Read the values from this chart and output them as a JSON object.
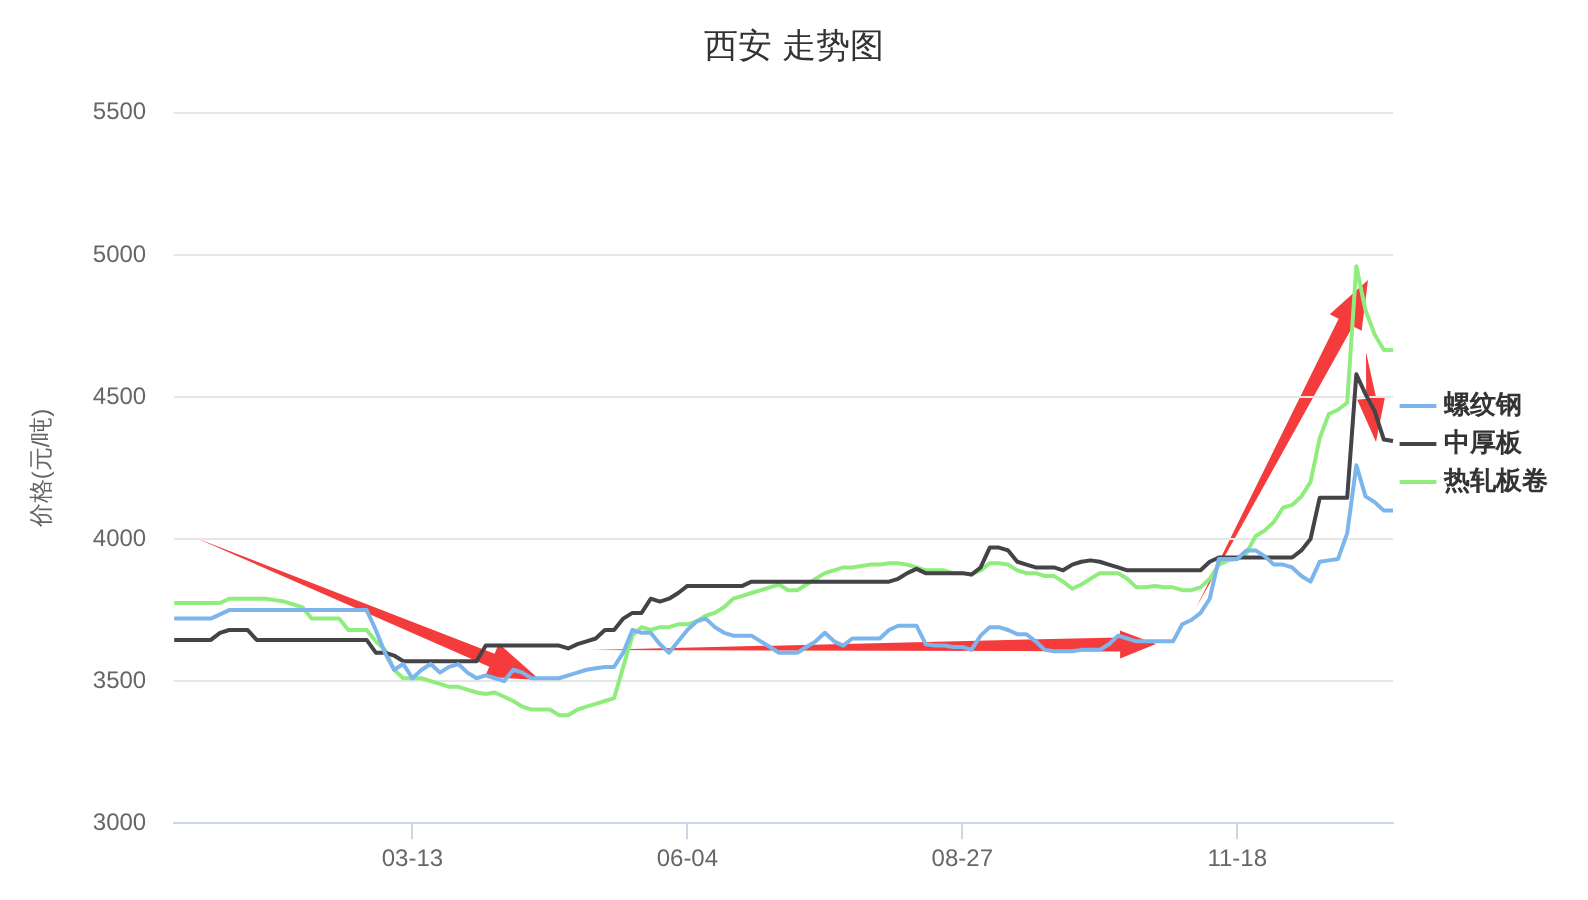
{
  "chart_data": {
    "type": "line",
    "title": "西安 走势图",
    "ylabel": "价格(元/吨)",
    "categories": [
      null,
      null,
      null,
      null,
      null,
      null,
      null,
      null,
      null,
      null,
      null,
      null,
      null,
      null,
      null,
      null,
      null,
      null,
      null,
      null,
      null,
      null,
      null,
      null,
      null,
      null,
      "03-13",
      null,
      null,
      null,
      null,
      null,
      null,
      null,
      null,
      null,
      null,
      null,
      null,
      null,
      null,
      null,
      null,
      null,
      null,
      null,
      null,
      null,
      null,
      null,
      null,
      null,
      null,
      null,
      null,
      null,
      "06-04",
      null,
      null,
      null,
      null,
      null,
      null,
      null,
      null,
      null,
      null,
      null,
      null,
      null,
      null,
      null,
      null,
      null,
      null,
      null,
      null,
      null,
      null,
      null,
      null,
      null,
      null,
      null,
      null,
      null,
      "08-27",
      null,
      null,
      null,
      null,
      null,
      null,
      null,
      null,
      null,
      null,
      null,
      null,
      null,
      null,
      null,
      null,
      null,
      null,
      null,
      null,
      null,
      null,
      null,
      null,
      null,
      null,
      null,
      null,
      null,
      "11-18",
      null,
      null,
      null,
      null,
      null,
      null,
      null,
      null,
      null,
      null,
      null,
      null,
      null,
      null,
      null,
      null,
      null
    ],
    "series": [
      {
        "name": "螺纹钢",
        "color": "#7cb5ec",
        "values": [
          3720,
          3720,
          3720,
          3720,
          3720,
          3735,
          3750,
          3750,
          3750,
          3750,
          3750,
          3750,
          3750,
          3750,
          3750,
          3750,
          3750,
          3750,
          3750,
          3750,
          3750,
          3750,
          3680,
          3600,
          3540,
          3560,
          3510,
          3540,
          3560,
          3530,
          3550,
          3560,
          3530,
          3510,
          3520,
          3510,
          3500,
          3540,
          3530,
          3510,
          3510,
          3510,
          3510,
          3520,
          3530,
          3540,
          3545,
          3550,
          3550,
          3600,
          3680,
          3670,
          3670,
          3630,
          3600,
          3640,
          3680,
          3710,
          3720,
          3690,
          3670,
          3660,
          3660,
          3660,
          3640,
          3620,
          3600,
          3600,
          3600,
          3620,
          3640,
          3670,
          3640,
          3625,
          3650,
          3650,
          3650,
          3650,
          3680,
          3695,
          3695,
          3695,
          3630,
          3625,
          3625,
          3620,
          3620,
          3610,
          3660,
          3690,
          3690,
          3680,
          3665,
          3665,
          3640,
          3610,
          3605,
          3605,
          3605,
          3610,
          3610,
          3610,
          3630,
          3660,
          3650,
          3640,
          3640,
          3640,
          3640,
          3640,
          3700,
          3715,
          3740,
          3790,
          3930,
          3930,
          3930,
          3960,
          3960,
          3940,
          3910,
          3910,
          3900,
          3870,
          3850,
          3920,
          3925,
          3930,
          4020,
          4260,
          4150,
          4130,
          4100,
          4100
        ]
      },
      {
        "name": "中厚板",
        "color": "#434348",
        "values": [
          3645,
          3645,
          3645,
          3645,
          3645,
          3670,
          3680,
          3680,
          3680,
          3645,
          3645,
          3645,
          3645,
          3645,
          3645,
          3645,
          3645,
          3645,
          3645,
          3645,
          3645,
          3645,
          3600,
          3600,
          3590,
          3570,
          3570,
          3570,
          3570,
          3570,
          3570,
          3570,
          3570,
          3570,
          3625,
          3625,
          3625,
          3625,
          3625,
          3625,
          3625,
          3625,
          3625,
          3615,
          3630,
          3640,
          3650,
          3680,
          3680,
          3720,
          3740,
          3740,
          3790,
          3780,
          3790,
          3810,
          3835,
          3835,
          3835,
          3835,
          3835,
          3835,
          3835,
          3850,
          3850,
          3850,
          3850,
          3850,
          3850,
          3850,
          3850,
          3850,
          3850,
          3850,
          3850,
          3850,
          3850,
          3850,
          3850,
          3860,
          3880,
          3895,
          3880,
          3880,
          3880,
          3880,
          3880,
          3875,
          3900,
          3970,
          3970,
          3960,
          3920,
          3910,
          3900,
          3900,
          3900,
          3890,
          3910,
          3920,
          3925,
          3920,
          3910,
          3900,
          3890,
          3890,
          3890,
          3890,
          3890,
          3890,
          3890,
          3890,
          3890,
          3920,
          3935,
          3935,
          3935,
          3935,
          3935,
          3935,
          3935,
          3935,
          3935,
          3960,
          4000,
          4145,
          4145,
          4145,
          4145,
          4580,
          4510,
          4450,
          4350,
          4345
        ]
      },
      {
        "name": "热轧板卷",
        "color": "#90ed7d",
        "values": [
          3775,
          3775,
          3775,
          3775,
          3775,
          3775,
          3790,
          3790,
          3790,
          3790,
          3790,
          3785,
          3780,
          3770,
          3760,
          3720,
          3720,
          3720,
          3720,
          3680,
          3680,
          3680,
          3640,
          3610,
          3540,
          3510,
          3510,
          3510,
          3500,
          3490,
          3480,
          3480,
          3470,
          3460,
          3455,
          3460,
          3445,
          3430,
          3410,
          3400,
          3400,
          3400,
          3380,
          3380,
          3400,
          3410,
          3420,
          3430,
          3440,
          3550,
          3660,
          3690,
          3680,
          3690,
          3690,
          3700,
          3700,
          3710,
          3730,
          3740,
          3760,
          3790,
          3800,
          3810,
          3820,
          3830,
          3840,
          3820,
          3820,
          3840,
          3860,
          3880,
          3890,
          3900,
          3900,
          3905,
          3910,
          3910,
          3915,
          3915,
          3910,
          3900,
          3890,
          3890,
          3890,
          3880,
          3880,
          3875,
          3890,
          3915,
          3915,
          3910,
          3890,
          3880,
          3880,
          3870,
          3870,
          3850,
          3825,
          3840,
          3860,
          3880,
          3880,
          3880,
          3860,
          3830,
          3830,
          3835,
          3830,
          3830,
          3820,
          3820,
          3830,
          3860,
          3910,
          3925,
          3930,
          3950,
          4010,
          4030,
          4060,
          4110,
          4120,
          4150,
          4200,
          4355,
          4440,
          4455,
          4480,
          4960,
          4805,
          4720,
          4665,
          4665
        ]
      }
    ],
    "ylim": [
      3000,
      5500
    ],
    "yticks": [
      3000,
      3500,
      4000,
      4500,
      5000,
      5500
    ],
    "grid": "y",
    "legend": "right",
    "marker": "none",
    "line_style": "solid"
  }
}
